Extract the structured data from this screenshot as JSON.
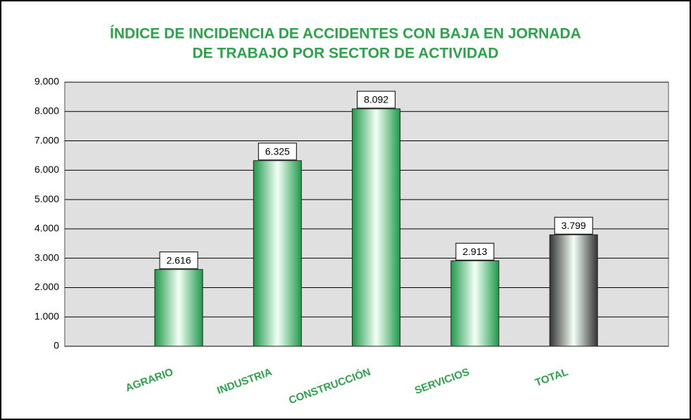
{
  "chart_data": {
    "type": "bar",
    "title": [
      "ÍNDICE DE INCIDENCIA DE ACCIDENTES CON BAJA EN JORNADA",
      "DE TRABAJO POR SECTOR DE ACTIVIDAD"
    ],
    "categories": [
      "AGRARIO",
      "INDUSTRIA",
      "CONSTRUCCIÓN",
      "SERVICIOS",
      "TOTAL"
    ],
    "values": [
      2616,
      6325,
      8092,
      2913,
      3799
    ],
    "value_labels": [
      "2.616",
      "6.325",
      "8.092",
      "2.913",
      "3.799"
    ],
    "colors": [
      "#1f9a4a",
      "#1f9a4a",
      "#1f9a4a",
      "#1f9a4a",
      "#333333"
    ],
    "ylim": [
      0,
      9000
    ],
    "yticks": [
      0,
      {
        "value": 1000,
        "label": "1.000"
      },
      {
        "value": 2000,
        "label": "2.000"
      },
      {
        "value": 3000,
        "label": "3.000"
      },
      {
        "value": 4000,
        "label": "4.000"
      },
      {
        "value": 5000,
        "label": "5.000"
      },
      {
        "value": 6000,
        "label": "6.000"
      },
      {
        "value": 7000,
        "label": "7.000"
      },
      {
        "value": 8000,
        "label": "8.000"
      },
      {
        "value": 9000,
        "label": "9.000"
      }
    ],
    "grid": true
  }
}
